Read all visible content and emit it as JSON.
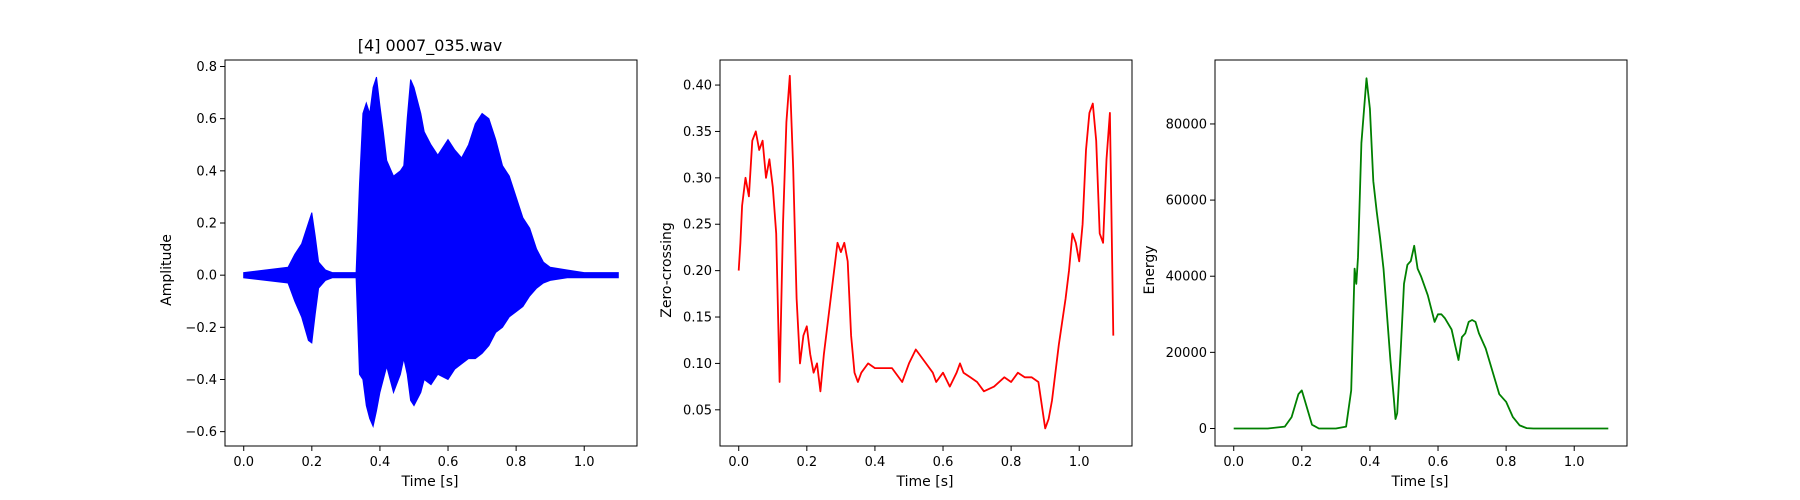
{
  "chart_data": [
    {
      "type": "line",
      "title": "[4] 0007_035.wav",
      "xlabel": "Time [s]",
      "ylabel": "Amplitude",
      "xlim": [
        -0.055,
        1.155
      ],
      "ylim": [
        -0.655,
        0.825
      ],
      "xticks": [
        0.0,
        0.2,
        0.4,
        0.6,
        0.8,
        1.0
      ],
      "xtick_labels": [
        "0.0",
        "0.2",
        "0.4",
        "0.6",
        "0.8",
        "1.0"
      ],
      "yticks": [
        -0.6,
        -0.4,
        -0.2,
        0.0,
        0.2,
        0.4,
        0.6,
        0.8
      ],
      "ytick_labels": [
        "−0.6",
        "−0.4",
        "−0.2",
        "0.0",
        "0.2",
        "0.4",
        "0.6",
        "0.8"
      ],
      "grid": false,
      "color": "#0000ff",
      "series": [
        {
          "x": [
            0.0,
            0.13,
            0.15,
            0.17,
            0.19,
            0.2,
            0.21,
            0.22,
            0.24,
            0.26,
            0.3,
            0.33,
            0.34,
            0.35,
            0.36,
            0.37,
            0.38,
            0.39,
            0.4,
            0.41,
            0.42,
            0.44,
            0.46,
            0.47,
            0.48,
            0.49,
            0.5,
            0.52,
            0.53,
            0.55,
            0.57,
            0.6,
            0.62,
            0.64,
            0.66,
            0.68,
            0.7,
            0.72,
            0.74,
            0.76,
            0.78,
            0.8,
            0.82,
            0.84,
            0.86,
            0.88,
            0.9,
            0.95,
            1.0,
            1.1
          ],
          "upper": [
            0.01,
            0.03,
            0.08,
            0.12,
            0.2,
            0.24,
            0.15,
            0.05,
            0.02,
            0.01,
            0.01,
            0.01,
            0.35,
            0.62,
            0.66,
            0.62,
            0.72,
            0.76,
            0.65,
            0.55,
            0.44,
            0.38,
            0.4,
            0.42,
            0.6,
            0.75,
            0.72,
            0.62,
            0.55,
            0.5,
            0.46,
            0.52,
            0.48,
            0.45,
            0.5,
            0.58,
            0.62,
            0.6,
            0.52,
            0.42,
            0.38,
            0.3,
            0.22,
            0.18,
            0.1,
            0.05,
            0.03,
            0.02,
            0.01,
            0.01
          ],
          "lower": [
            -0.01,
            -0.03,
            -0.1,
            -0.16,
            -0.25,
            -0.26,
            -0.15,
            -0.05,
            -0.02,
            -0.01,
            -0.01,
            -0.01,
            -0.38,
            -0.4,
            -0.5,
            -0.55,
            -0.58,
            -0.52,
            -0.45,
            -0.4,
            -0.35,
            -0.45,
            -0.38,
            -0.32,
            -0.38,
            -0.48,
            -0.5,
            -0.45,
            -0.4,
            -0.42,
            -0.38,
            -0.4,
            -0.36,
            -0.34,
            -0.32,
            -0.32,
            -0.3,
            -0.27,
            -0.22,
            -0.2,
            -0.16,
            -0.14,
            -0.12,
            -0.08,
            -0.05,
            -0.03,
            -0.02,
            -0.01,
            -0.01,
            -0.01
          ]
        }
      ]
    },
    {
      "type": "line",
      "title": "",
      "xlabel": "Time [s]",
      "ylabel": "Zero-crossing",
      "xlim": [
        -0.055,
        1.155
      ],
      "ylim": [
        0.011,
        0.427
      ],
      "xticks": [
        0.0,
        0.2,
        0.4,
        0.6,
        0.8,
        1.0
      ],
      "xtick_labels": [
        "0.0",
        "0.2",
        "0.4",
        "0.6",
        "0.8",
        "1.0"
      ],
      "yticks": [
        0.05,
        0.1,
        0.15,
        0.2,
        0.25,
        0.3,
        0.35,
        0.4
      ],
      "ytick_labels": [
        "0.05",
        "0.10",
        "0.15",
        "0.20",
        "0.25",
        "0.30",
        "0.35",
        "0.40"
      ],
      "grid": false,
      "color": "#ff0000",
      "series": [
        {
          "x": [
            0.0,
            0.005,
            0.01,
            0.02,
            0.03,
            0.04,
            0.05,
            0.06,
            0.07,
            0.08,
            0.09,
            0.1,
            0.11,
            0.12,
            0.13,
            0.14,
            0.15,
            0.16,
            0.17,
            0.18,
            0.19,
            0.2,
            0.21,
            0.22,
            0.23,
            0.24,
            0.25,
            0.27,
            0.29,
            0.3,
            0.31,
            0.32,
            0.33,
            0.34,
            0.35,
            0.36,
            0.38,
            0.4,
            0.42,
            0.45,
            0.48,
            0.5,
            0.52,
            0.53,
            0.55,
            0.57,
            0.58,
            0.6,
            0.62,
            0.64,
            0.65,
            0.66,
            0.68,
            0.7,
            0.72,
            0.75,
            0.78,
            0.8,
            0.82,
            0.84,
            0.86,
            0.88,
            0.9,
            0.91,
            0.92,
            0.94,
            0.96,
            0.97,
            0.98,
            0.99,
            1.0,
            1.01,
            1.02,
            1.03,
            1.04,
            1.05,
            1.06,
            1.07,
            1.08,
            1.09,
            1.1
          ],
          "y": [
            0.2,
            0.23,
            0.27,
            0.3,
            0.28,
            0.34,
            0.35,
            0.33,
            0.34,
            0.3,
            0.32,
            0.29,
            0.24,
            0.08,
            0.25,
            0.36,
            0.41,
            0.31,
            0.17,
            0.1,
            0.13,
            0.14,
            0.11,
            0.09,
            0.1,
            0.07,
            0.11,
            0.17,
            0.23,
            0.22,
            0.23,
            0.21,
            0.13,
            0.09,
            0.08,
            0.09,
            0.1,
            0.095,
            0.095,
            0.095,
            0.08,
            0.1,
            0.115,
            0.11,
            0.1,
            0.09,
            0.08,
            0.09,
            0.075,
            0.09,
            0.1,
            0.09,
            0.085,
            0.08,
            0.07,
            0.075,
            0.085,
            0.08,
            0.09,
            0.085,
            0.085,
            0.08,
            0.03,
            0.04,
            0.06,
            0.12,
            0.17,
            0.2,
            0.24,
            0.23,
            0.21,
            0.25,
            0.33,
            0.37,
            0.38,
            0.34,
            0.24,
            0.23,
            0.32,
            0.37,
            0.13
          ]
        }
      ]
    },
    {
      "type": "line",
      "title": "",
      "xlabel": "Time [s]",
      "ylabel": "Energy",
      "xlim": [
        -0.055,
        1.155
      ],
      "ylim": [
        -4600,
        96800
      ],
      "xticks": [
        0.0,
        0.2,
        0.4,
        0.6,
        0.8,
        1.0
      ],
      "xtick_labels": [
        "0.0",
        "0.2",
        "0.4",
        "0.6",
        "0.8",
        "1.0"
      ],
      "yticks": [
        0,
        20000,
        40000,
        60000,
        80000
      ],
      "ytick_labels": [
        "0",
        "20000",
        "40000",
        "60000",
        "80000"
      ],
      "grid": false,
      "color": "#008000",
      "series": [
        {
          "x": [
            0.0,
            0.1,
            0.15,
            0.17,
            0.19,
            0.2,
            0.21,
            0.23,
            0.25,
            0.3,
            0.33,
            0.345,
            0.355,
            0.36,
            0.365,
            0.375,
            0.39,
            0.4,
            0.41,
            0.42,
            0.43,
            0.44,
            0.46,
            0.47,
            0.475,
            0.48,
            0.49,
            0.5,
            0.51,
            0.52,
            0.53,
            0.54,
            0.55,
            0.57,
            0.59,
            0.6,
            0.61,
            0.62,
            0.64,
            0.65,
            0.66,
            0.67,
            0.68,
            0.69,
            0.7,
            0.71,
            0.72,
            0.74,
            0.76,
            0.78,
            0.8,
            0.82,
            0.84,
            0.86,
            0.88,
            0.9,
            1.0,
            1.1
          ],
          "y": [
            0,
            0,
            500,
            3000,
            9000,
            10000,
            7000,
            1000,
            0,
            0,
            500,
            10000,
            42000,
            38000,
            45000,
            75000,
            92000,
            84000,
            65000,
            57000,
            50000,
            42000,
            18000,
            8000,
            2500,
            4000,
            20000,
            38000,
            43000,
            44000,
            48000,
            42000,
            40000,
            35000,
            28000,
            30000,
            30000,
            29000,
            26000,
            22000,
            18000,
            24000,
            25000,
            28000,
            28500,
            28000,
            25000,
            21000,
            15000,
            9000,
            7000,
            3000,
            800,
            100,
            0,
            0,
            0,
            0
          ]
        }
      ]
    }
  ]
}
